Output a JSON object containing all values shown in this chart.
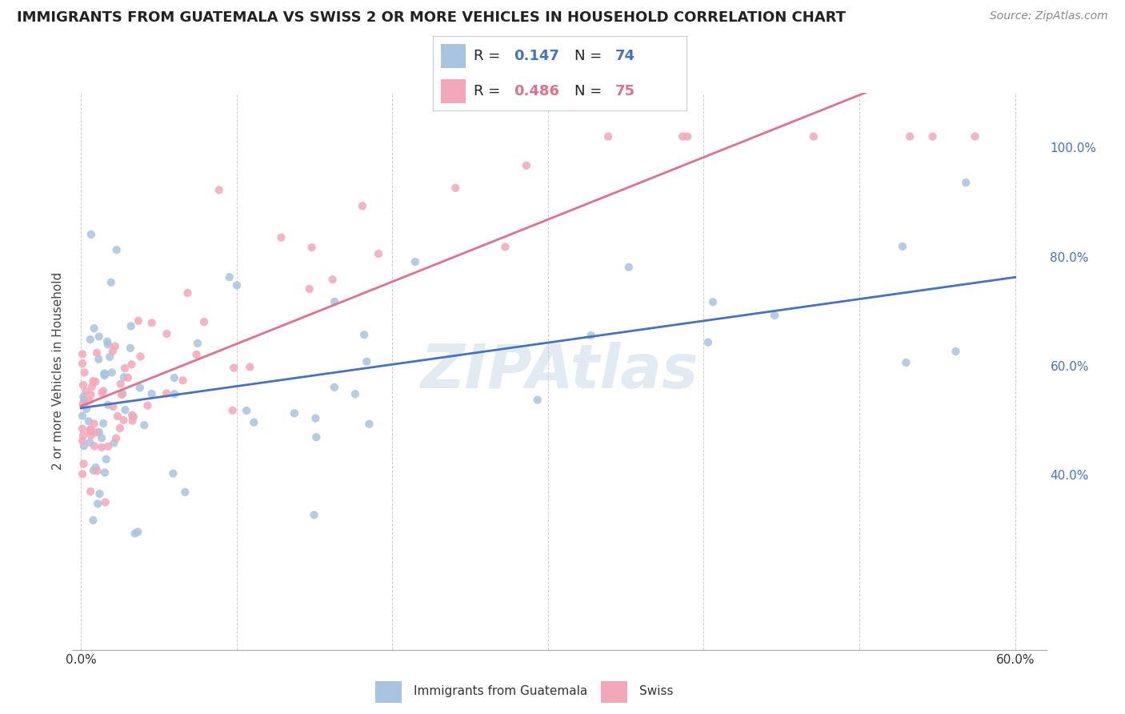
{
  "title": "IMMIGRANTS FROM GUATEMALA VS SWISS 2 OR MORE VEHICLES IN HOUSEHOLD CORRELATION CHART",
  "source": "Source: ZipAtlas.com",
  "ylabel": "2 or more Vehicles in Household",
  "R_guatemala": 0.147,
  "N_guatemala": 74,
  "R_swiss": 0.486,
  "N_swiss": 75,
  "color_guatemala": "#a8c4e0",
  "color_swiss": "#f4a7b9",
  "line_color_guatemala": "#4472c4",
  "line_color_swiss": "#e07090",
  "watermark": "ZIPAtlas",
  "legend_guatemala": "Immigrants from Guatemala",
  "legend_swiss": "Swiss",
  "xlim": [
    -0.005,
    0.62
  ],
  "ylim": [
    0.08,
    1.1
  ],
  "xtick_positions": [
    0.0,
    0.1,
    0.2,
    0.3,
    0.4,
    0.5,
    0.6
  ],
  "xticklabels": [
    "0.0%",
    "",
    "",
    "",
    "",
    "",
    "60.0%"
  ],
  "ytick_positions": [
    0.4,
    0.6,
    0.8,
    1.0
  ],
  "ytick_labels": [
    "40.0%",
    "60.0%",
    "80.0%",
    "100.0%"
  ],
  "title_fontsize": 13,
  "source_fontsize": 10,
  "axis_label_fontsize": 11,
  "tick_fontsize": 11,
  "legend_fontsize": 13,
  "watermark_fontsize": 55,
  "scatter_size": 55,
  "scatter_alpha": 0.85
}
